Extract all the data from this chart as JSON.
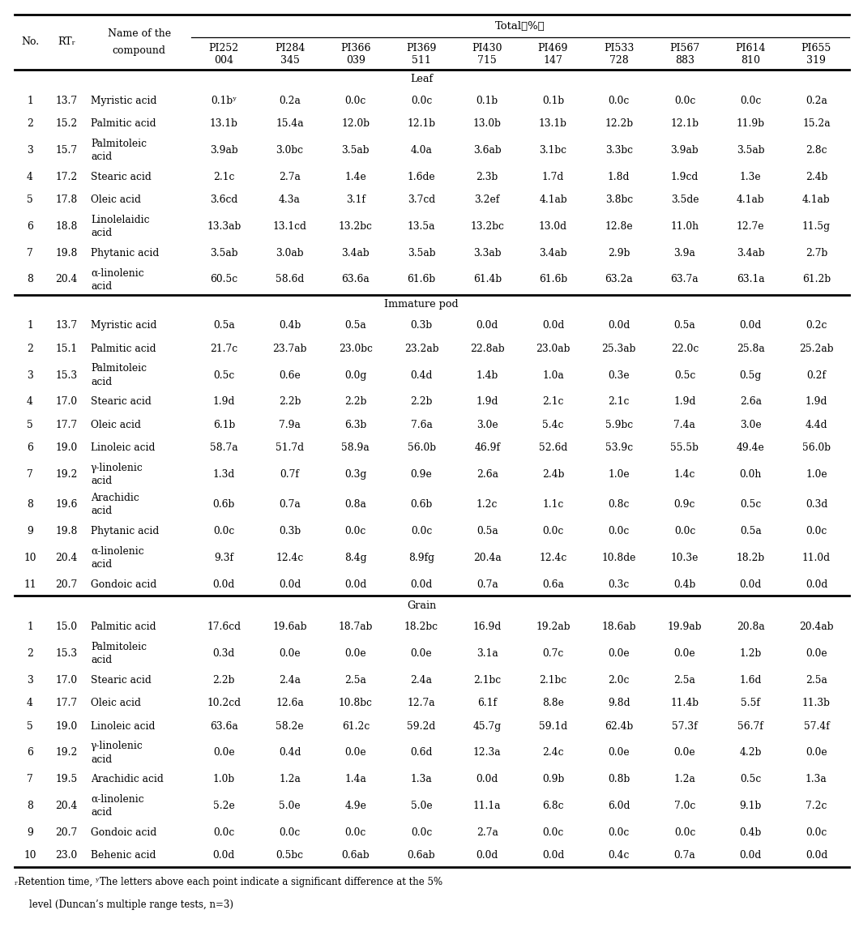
{
  "pi_headers": [
    [
      "PI252",
      "004"
    ],
    [
      "PI284",
      "345"
    ],
    [
      "PI366",
      "039"
    ],
    [
      "PI369",
      "511"
    ],
    [
      "PI430",
      "715"
    ],
    [
      "PI469",
      "147"
    ],
    [
      "PI533",
      "728"
    ],
    [
      "PI567",
      "883"
    ],
    [
      "PI614",
      "810"
    ],
    [
      "PI655",
      "319"
    ]
  ],
  "sections": [
    {
      "name": "Leaf",
      "rows": [
        [
          "1",
          "13.7",
          "Myristic acid",
          "0.1bʸ",
          "0.2a",
          "0.0c",
          "0.0c",
          "0.1b",
          "0.1b",
          "0.0c",
          "0.0c",
          "0.0c",
          "0.2a"
        ],
        [
          "2",
          "15.2",
          "Palmitic acid",
          "13.1b",
          "15.4a",
          "12.0b",
          "12.1b",
          "13.0b",
          "13.1b",
          "12.2b",
          "12.1b",
          "11.9b",
          "15.2a"
        ],
        [
          "3",
          "15.7",
          "Palmitoleic\nacid",
          "3.9ab",
          "3.0bc",
          "3.5ab",
          "4.0a",
          "3.6ab",
          "3.1bc",
          "3.3bc",
          "3.9ab",
          "3.5ab",
          "2.8c"
        ],
        [
          "4",
          "17.2",
          "Stearic acid",
          "2.1c",
          "2.7a",
          "1.4e",
          "1.6de",
          "2.3b",
          "1.7d",
          "1.8d",
          "1.9cd",
          "1.3e",
          "2.4b"
        ],
        [
          "5",
          "17.8",
          "Oleic acid",
          "3.6cd",
          "4.3a",
          "3.1f",
          "3.7cd",
          "3.2ef",
          "4.1ab",
          "3.8bc",
          "3.5de",
          "4.1ab",
          "4.1ab"
        ],
        [
          "6",
          "18.8",
          "Linolelaidic\nacid",
          "13.3ab",
          "13.1cd",
          "13.2bc",
          "13.5a",
          "13.2bc",
          "13.0d",
          "12.8e",
          "11.0h",
          "12.7e",
          "11.5g"
        ],
        [
          "7",
          "19.8",
          "Phytanic acid",
          "3.5ab",
          "3.0ab",
          "3.4ab",
          "3.5ab",
          "3.3ab",
          "3.4ab",
          "2.9b",
          "3.9a",
          "3.4ab",
          "2.7b"
        ],
        [
          "8",
          "20.4",
          "α-linolenic\nacid",
          "60.5c",
          "58.6d",
          "63.6a",
          "61.6b",
          "61.4b",
          "61.6b",
          "63.2a",
          "63.7a",
          "63.1a",
          "61.2b"
        ]
      ]
    },
    {
      "name": "Immature pod",
      "rows": [
        [
          "1",
          "13.7",
          "Myristic acid",
          "0.5a",
          "0.4b",
          "0.5a",
          "0.3b",
          "0.0d",
          "0.0d",
          "0.0d",
          "0.5a",
          "0.0d",
          "0.2c"
        ],
        [
          "2",
          "15.1",
          "Palmitic acid",
          "21.7c",
          "23.7ab",
          "23.0bc",
          "23.2ab",
          "22.8ab",
          "23.0ab",
          "25.3ab",
          "22.0c",
          "25.8a",
          "25.2ab"
        ],
        [
          "3",
          "15.3",
          "Palmitoleic\nacid",
          "0.5c",
          "0.6e",
          "0.0g",
          "0.4d",
          "1.4b",
          "1.0a",
          "0.3e",
          "0.5c",
          "0.5g",
          "0.2f"
        ],
        [
          "4",
          "17.0",
          "Stearic acid",
          "1.9d",
          "2.2b",
          "2.2b",
          "2.2b",
          "1.9d",
          "2.1c",
          "2.1c",
          "1.9d",
          "2.6a",
          "1.9d"
        ],
        [
          "5",
          "17.7",
          "Oleic acid",
          "6.1b",
          "7.9a",
          "6.3b",
          "7.6a",
          "3.0e",
          "5.4c",
          "5.9bc",
          "7.4a",
          "3.0e",
          "4.4d"
        ],
        [
          "6",
          "19.0",
          "Linoleic acid",
          "58.7a",
          "51.7d",
          "58.9a",
          "56.0b",
          "46.9f",
          "52.6d",
          "53.9c",
          "55.5b",
          "49.4e",
          "56.0b"
        ],
        [
          "7",
          "19.2",
          "γ-linolenic\nacid",
          "1.3d",
          "0.7f",
          "0.3g",
          "0.9e",
          "2.6a",
          "2.4b",
          "1.0e",
          "1.4c",
          "0.0h",
          "1.0e"
        ],
        [
          "8",
          "19.6",
          "Arachidic\nacid",
          "0.6b",
          "0.7a",
          "0.8a",
          "0.6b",
          "1.2c",
          "1.1c",
          "0.8c",
          "0.9c",
          "0.5c",
          "0.3d"
        ],
        [
          "9",
          "19.8",
          "Phytanic acid",
          "0.0c",
          "0.3b",
          "0.0c",
          "0.0c",
          "0.5a",
          "0.0c",
          "0.0c",
          "0.0c",
          "0.5a",
          "0.0c"
        ],
        [
          "10",
          "20.4",
          "α-linolenic\nacid",
          "9.3f",
          "12.4c",
          "8.4g",
          "8.9fg",
          "20.4a",
          "12.4c",
          "10.8de",
          "10.3e",
          "18.2b",
          "11.0d"
        ],
        [
          "11",
          "20.7",
          "Gondoic acid",
          "0.0d",
          "0.0d",
          "0.0d",
          "0.0d",
          "0.7a",
          "0.6a",
          "0.3c",
          "0.4b",
          "0.0d",
          "0.0d"
        ]
      ]
    },
    {
      "name": "Grain",
      "rows": [
        [
          "1",
          "15.0",
          "Palmitic acid",
          "17.6cd",
          "19.6ab",
          "18.7ab",
          "18.2bc",
          "16.9d",
          "19.2ab",
          "18.6ab",
          "19.9ab",
          "20.8a",
          "20.4ab"
        ],
        [
          "2",
          "15.3",
          "Palmitoleic\nacid",
          "0.3d",
          "0.0e",
          "0.0e",
          "0.0e",
          "3.1a",
          "0.7c",
          "0.0e",
          "0.0e",
          "1.2b",
          "0.0e"
        ],
        [
          "3",
          "17.0",
          "Stearic acid",
          "2.2b",
          "2.4a",
          "2.5a",
          "2.4a",
          "2.1bc",
          "2.1bc",
          "2.0c",
          "2.5a",
          "1.6d",
          "2.5a"
        ],
        [
          "4",
          "17.7",
          "Oleic acid",
          "10.2cd",
          "12.6a",
          "10.8bc",
          "12.7a",
          "6.1f",
          "8.8e",
          "9.8d",
          "11.4b",
          "5.5f",
          "11.3b"
        ],
        [
          "5",
          "19.0",
          "Linoleic acid",
          "63.6a",
          "58.2e",
          "61.2c",
          "59.2d",
          "45.7g",
          "59.1d",
          "62.4b",
          "57.3f",
          "56.7f",
          "57.4f"
        ],
        [
          "6",
          "19.2",
          "γ-linolenic\nacid",
          "0.0e",
          "0.4d",
          "0.0e",
          "0.6d",
          "12.3a",
          "2.4c",
          "0.0e",
          "0.0e",
          "4.2b",
          "0.0e"
        ],
        [
          "7",
          "19.5",
          "Arachidic acid",
          "1.0b",
          "1.2a",
          "1.4a",
          "1.3a",
          "0.0d",
          "0.9b",
          "0.8b",
          "1.2a",
          "0.5c",
          "1.3a"
        ],
        [
          "8",
          "20.4",
          "α-linolenic\nacid",
          "5.2e",
          "5.0e",
          "4.9e",
          "5.0e",
          "11.1a",
          "6.8c",
          "6.0d",
          "7.0c",
          "9.1b",
          "7.2c"
        ],
        [
          "9",
          "20.7",
          "Gondoic acid",
          "0.0c",
          "0.0c",
          "0.0c",
          "0.0c",
          "2.7a",
          "0.0c",
          "0.0c",
          "0.0c",
          "0.4b",
          "0.0c"
        ],
        [
          "10",
          "23.0",
          "Behenic acid",
          "0.0d",
          "0.5bc",
          "0.6ab",
          "0.6ab",
          "0.0d",
          "0.0d",
          "0.4c",
          "0.7a",
          "0.0d",
          "0.0d"
        ]
      ]
    }
  ]
}
